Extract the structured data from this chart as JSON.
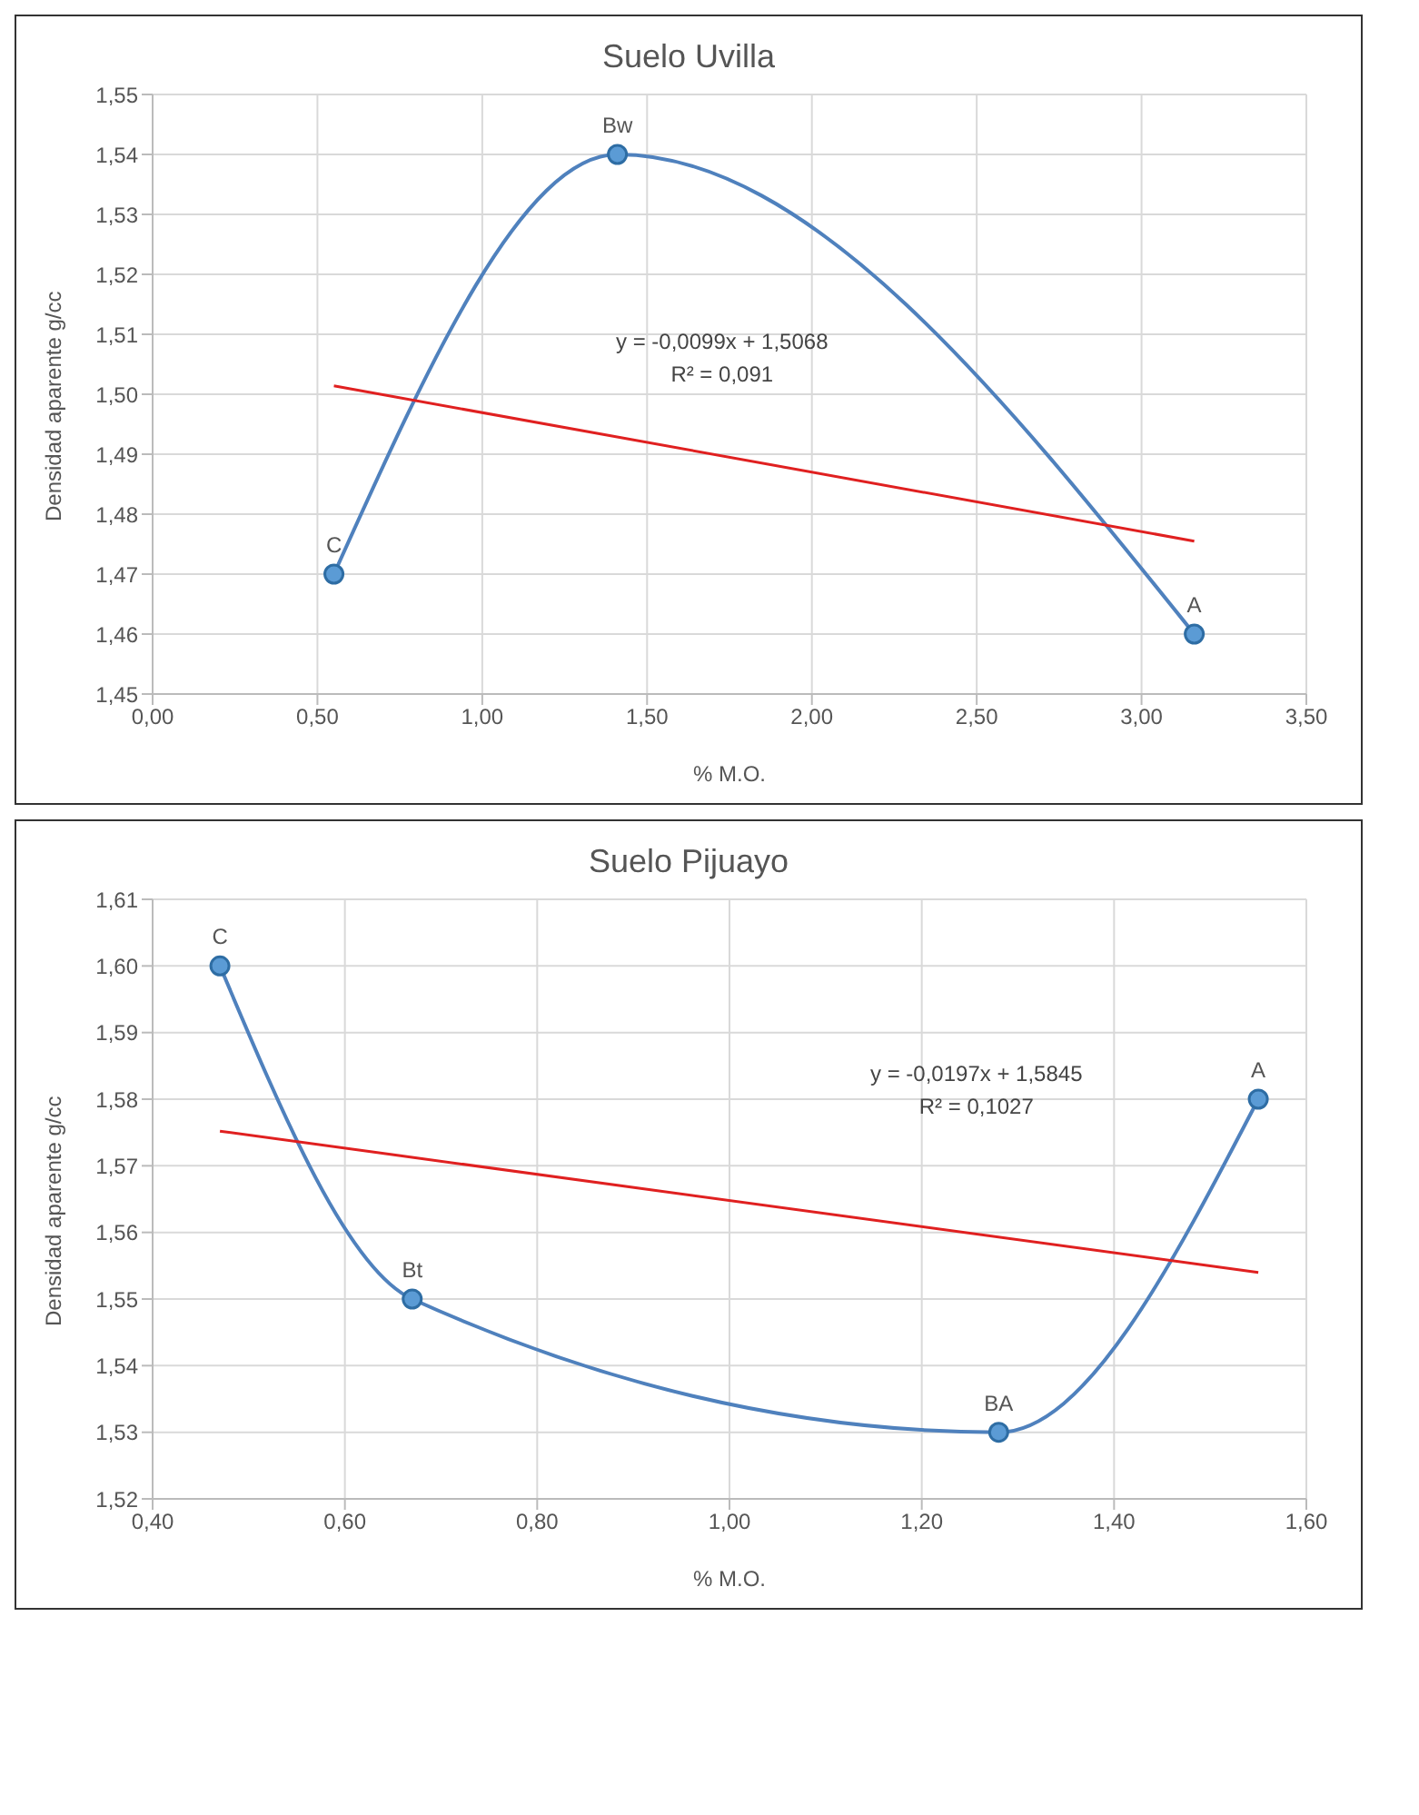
{
  "chart_data": [
    {
      "type": "line",
      "title": "Suelo Uvilla",
      "xlabel": "% M.O.",
      "ylabel": "Densidad aparente g/cc",
      "grid": true,
      "xlim": [
        0,
        3.5
      ],
      "xticks": [
        {
          "value": 0,
          "label": "0,00"
        },
        {
          "value": 0.5,
          "label": "0,50"
        },
        {
          "value": 1,
          "label": "1,00"
        },
        {
          "value": 1.5,
          "label": "1,50"
        },
        {
          "value": 2,
          "label": "2,00"
        },
        {
          "value": 2.5,
          "label": "2,50"
        },
        {
          "value": 3,
          "label": "3,00"
        },
        {
          "value": 3.5,
          "label": "3,50"
        }
      ],
      "ylim": [
        1.45,
        1.55
      ],
      "yticks": [
        {
          "value": 1.45,
          "label": "1,45"
        },
        {
          "value": 1.46,
          "label": "1,46"
        },
        {
          "value": 1.47,
          "label": "1,47"
        },
        {
          "value": 1.48,
          "label": "1,48"
        },
        {
          "value": 1.49,
          "label": "1,49"
        },
        {
          "value": 1.5,
          "label": "1,50"
        },
        {
          "value": 1.51,
          "label": "1,51"
        },
        {
          "value": 1.52,
          "label": "1,52"
        },
        {
          "value": 1.53,
          "label": "1,53"
        },
        {
          "value": 1.54,
          "label": "1,54"
        },
        {
          "value": 1.55,
          "label": "1,55"
        }
      ],
      "series": [
        {
          "color": "#4f81bd",
          "marker": "circle",
          "x": [
            0.55,
            1.41,
            3.16
          ],
          "values": [
            1.47,
            1.54,
            1.46
          ]
        },
        {
          "color": "#e02020",
          "marker": "none",
          "x": [
            0.55,
            3.16
          ],
          "values": [
            1.5014,
            1.4755
          ]
        }
      ],
      "annotations": [
        {
          "text": "C",
          "x": 0.55,
          "y": 1.47
        },
        {
          "text": "Bw",
          "x": 1.41,
          "y": 1.54
        },
        {
          "text": "A",
          "x": 3.16,
          "y": 1.46
        },
        "y = -0,0099x + 1,5068",
        "R² = 0,091"
      ]
    },
    {
      "type": "line",
      "title": "Suelo Pijuayo",
      "xlabel": "% M.O.",
      "ylabel": "Densidad aparente g/cc",
      "grid": true,
      "xlim": [
        0.4,
        1.6
      ],
      "xticks": [
        {
          "value": 0.4,
          "label": "0,40"
        },
        {
          "value": 0.6,
          "label": "0,60"
        },
        {
          "value": 0.8,
          "label": "0,80"
        },
        {
          "value": 1,
          "label": "1,00"
        },
        {
          "value": 1.2,
          "label": "1,20"
        },
        {
          "value": 1.4,
          "label": "1,40"
        },
        {
          "value": 1.6,
          "label": "1,60"
        }
      ],
      "ylim": [
        1.52,
        1.61
      ],
      "yticks": [
        {
          "value": 1.52,
          "label": "1,52"
        },
        {
          "value": 1.53,
          "label": "1,53"
        },
        {
          "value": 1.54,
          "label": "1,54"
        },
        {
          "value": 1.55,
          "label": "1,55"
        },
        {
          "value": 1.56,
          "label": "1,56"
        },
        {
          "value": 1.57,
          "label": "1,57"
        },
        {
          "value": 1.58,
          "label": "1,58"
        },
        {
          "value": 1.59,
          "label": "1,59"
        },
        {
          "value": 1.6,
          "label": "1,60"
        },
        {
          "value": 1.61,
          "label": "1,61"
        }
      ],
      "series": [
        {
          "color": "#4f81bd",
          "marker": "circle",
          "x": [
            0.47,
            0.67,
            1.28,
            1.55
          ],
          "values": [
            1.6,
            1.55,
            1.53,
            1.58
          ]
        },
        {
          "color": "#e02020",
          "marker": "none",
          "x": [
            0.47,
            1.55
          ],
          "values": [
            1.5752,
            1.554
          ]
        }
      ],
      "annotations": [
        {
          "text": "C",
          "x": 0.47,
          "y": 1.6
        },
        {
          "text": "Bt",
          "x": 0.67,
          "y": 1.55
        },
        {
          "text": "BA",
          "x": 1.28,
          "y": 1.53
        },
        {
          "text": "A",
          "x": 1.55,
          "y": 1.58
        },
        "y = -0,0197x + 1,5845",
        "R² = 0,1027"
      ]
    }
  ]
}
